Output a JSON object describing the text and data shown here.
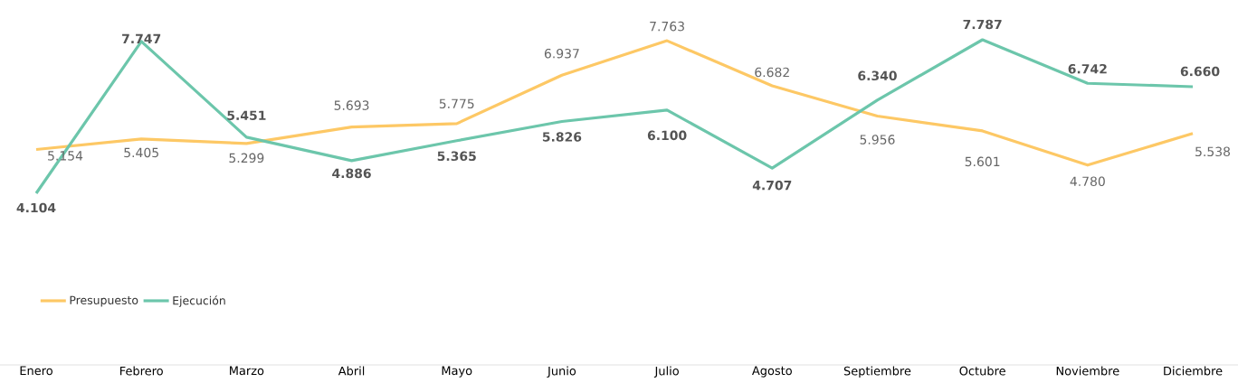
{
  "chart_data": {
    "type": "line",
    "categories": [
      "Enero",
      "Febrero",
      "Marzo",
      "Abril",
      "Mayo",
      "Junio",
      "Julio",
      "Agosto",
      "Septiembre",
      "Octubre",
      "Noviembre",
      "Diciembre"
    ],
    "legend": "bottom left",
    "series": [
      {
        "name": "Presupuesto",
        "color": "#fdc865",
        "values": [
          5.154,
          5.405,
          5.299,
          5.693,
          5.775,
          6.937,
          7.763,
          6.682,
          5.956,
          5.601,
          4.78,
          5.538
        ],
        "value_labels": [
          "5.154",
          "5.405",
          "5.299",
          "5.693",
          "5.775",
          "6.937",
          "7.763",
          "6.682",
          "5.956",
          "5.601",
          "4.780",
          "5.538"
        ]
      },
      {
        "name": "Ejecución",
        "color": "#6cc6ab",
        "values": [
          4.104,
          7.747,
          5.451,
          4.886,
          5.365,
          5.826,
          6.1,
          4.707,
          6.34,
          7.787,
          6.742,
          6.66
        ],
        "value_labels": [
          "4.104",
          "7.747",
          "5.451",
          "4.886",
          "5.365",
          "5.826",
          "6.100",
          "4.707",
          "6.340",
          "7.787",
          "6.742",
          "6.660"
        ]
      }
    ]
  }
}
